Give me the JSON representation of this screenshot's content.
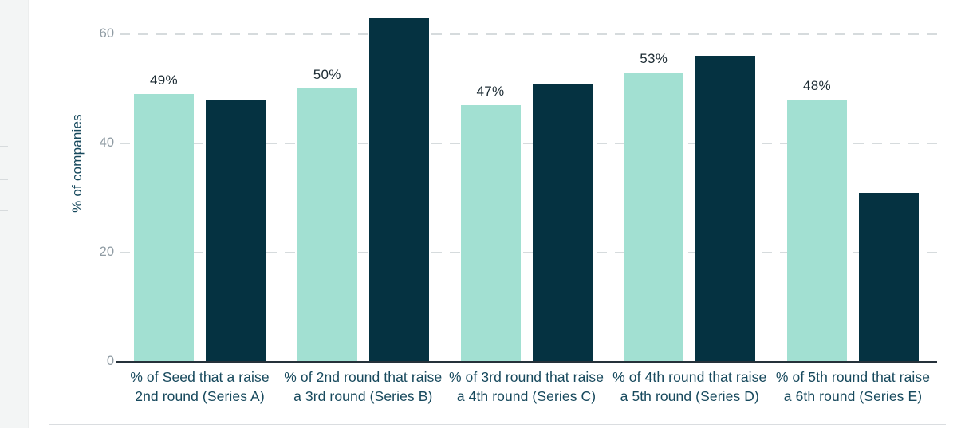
{
  "chart_data": {
    "type": "bar",
    "title": "",
    "ylabel": "% of companies",
    "xlabel": "",
    "yticks": [
      0,
      20,
      40,
      60
    ],
    "ylim": [
      0,
      66.3
    ],
    "grid": "dashed horizontal gridlines at 20, 40, 60",
    "legend": "none",
    "categories": [
      [
        "% of Seed that a raise",
        "2nd round (Series A)"
      ],
      [
        "% of 2nd round that raise",
        "a 3rd round (Series B)"
      ],
      [
        "% of 3rd round that raise",
        "a 4th round (Series C)"
      ],
      [
        "% of 4th round that raise",
        "a 5th round (Series D)"
      ],
      [
        "% of 5th round that raise",
        "a 6th round (Series E)"
      ]
    ],
    "series": [
      {
        "name": "light-teal-bars",
        "color": "#a2e0d2",
        "values": [
          49,
          50,
          47,
          53,
          48
        ],
        "value_labels": [
          "49%",
          "50%",
          "47%",
          "53%",
          "48%"
        ]
      },
      {
        "name": "dark-navy-bars",
        "color": "#053241",
        "values": [
          48,
          63,
          51,
          56,
          31
        ],
        "value_labels": null
      }
    ]
  },
  "left_panel": {
    "description": "edge of adjacent cut-off chart",
    "dash_count": 3
  }
}
